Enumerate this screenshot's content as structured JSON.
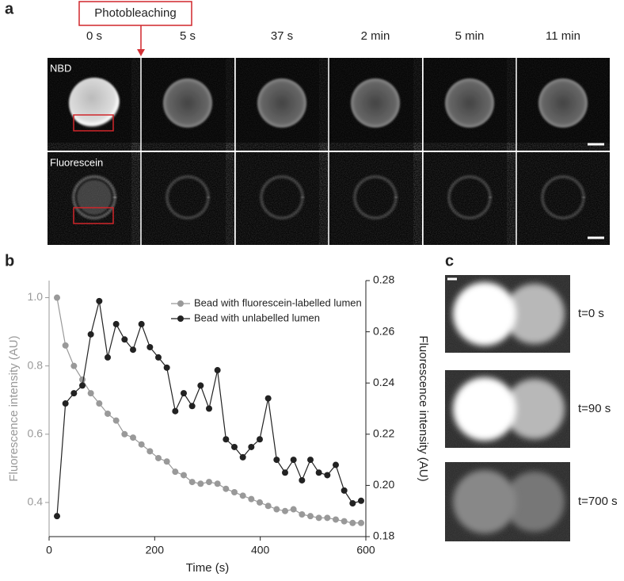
{
  "panel_labels": [
    "a",
    "b",
    "c"
  ],
  "annotation": "Photobleaching",
  "time_labels": [
    "0 s",
    "5 s",
    "37 s",
    "2 min",
    "5 min",
    "11 min"
  ],
  "row_labels": [
    "NBD",
    "Fluorescein"
  ],
  "panel_c_labels": [
    "t=0 s",
    "t=90 s",
    "t=700 s"
  ],
  "chart_data": {
    "type": "line",
    "x_label": "Time (s)",
    "y_label": "Fluorescence intensity (AU)",
    "y2_label": "Fluorescence intensity (AU)",
    "x": [
      15,
      31,
      47,
      63,
      79,
      95,
      111,
      127,
      143,
      159,
      175,
      191,
      207,
      223,
      239,
      255,
      271,
      287,
      303,
      319,
      335,
      351,
      367,
      383,
      399,
      415,
      431,
      447,
      463,
      479,
      495,
      511,
      527,
      543,
      559,
      575,
      591
    ],
    "series": [
      {
        "name": "Bead with fluorescein-labelled lumen",
        "color": "#999999",
        "axis": "y",
        "values": [
          1.0,
          0.86,
          0.8,
          0.76,
          0.72,
          0.69,
          0.66,
          0.64,
          0.6,
          0.59,
          0.57,
          0.55,
          0.53,
          0.52,
          0.49,
          0.48,
          0.46,
          0.455,
          0.46,
          0.455,
          0.44,
          0.43,
          0.42,
          0.41,
          0.4,
          0.39,
          0.38,
          0.375,
          0.38,
          0.365,
          0.36,
          0.355,
          0.355,
          0.35,
          0.345,
          0.34,
          0.34
        ]
      },
      {
        "name": "Bead with unlabelled lumen",
        "color": "#222222",
        "axis": "y2",
        "values": [
          0.188,
          0.232,
          0.236,
          0.239,
          0.259,
          0.272,
          0.25,
          0.263,
          0.257,
          0.253,
          0.263,
          0.254,
          0.25,
          0.246,
          0.229,
          0.236,
          0.231,
          0.239,
          0.23,
          0.245,
          0.218,
          0.215,
          0.211,
          0.215,
          0.218,
          0.234,
          0.21,
          0.205,
          0.21,
          0.202,
          0.21,
          0.205,
          0.204,
          0.208,
          0.198,
          0.193,
          0.194
        ]
      }
    ],
    "xlim": [
      0,
      600
    ],
    "xticks": [
      0,
      200,
      400,
      600
    ],
    "ylim": [
      0.3,
      1.05
    ],
    "yticks": [
      0.4,
      0.6,
      0.8,
      {
        "value": 1,
        "label": "1.0"
      }
    ],
    "y2lim": [
      0.18,
      0.28
    ],
    "y2ticks": [
      0.18,
      {
        "value": 0.2,
        "label": "0.20"
      },
      0.22,
      0.24,
      0.26,
      0.28
    ],
    "legend": "top",
    "grid": false
  }
}
